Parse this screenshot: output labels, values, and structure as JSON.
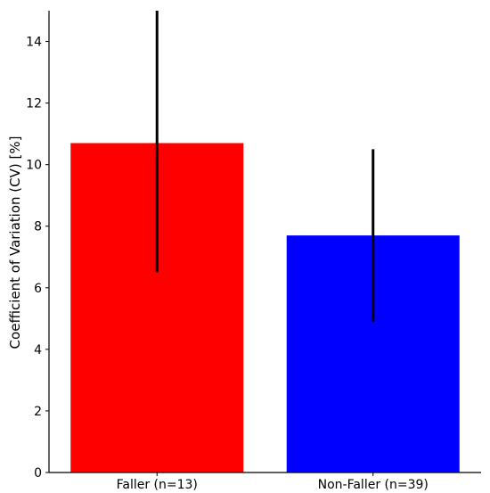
{
  "chart_data": {
    "type": "bar",
    "title": "",
    "xlabel": "",
    "ylabel": "Coefficient of Variation (CV) [%]",
    "categories": [
      "Faller (n=13)",
      "Non-Faller (n=39)"
    ],
    "values": [
      10.7,
      7.7
    ],
    "error_low": [
      6.5,
      4.9
    ],
    "error_high": [
      15.0,
      10.5
    ],
    "colors": [
      "#ff0000",
      "#0000ff"
    ],
    "error_color": "#000000",
    "ylim": [
      0,
      15
    ],
    "yticks": [
      "0",
      "2",
      "4",
      "6",
      "8",
      "10",
      "12",
      "14"
    ],
    "grid": false,
    "legend": "none"
  }
}
